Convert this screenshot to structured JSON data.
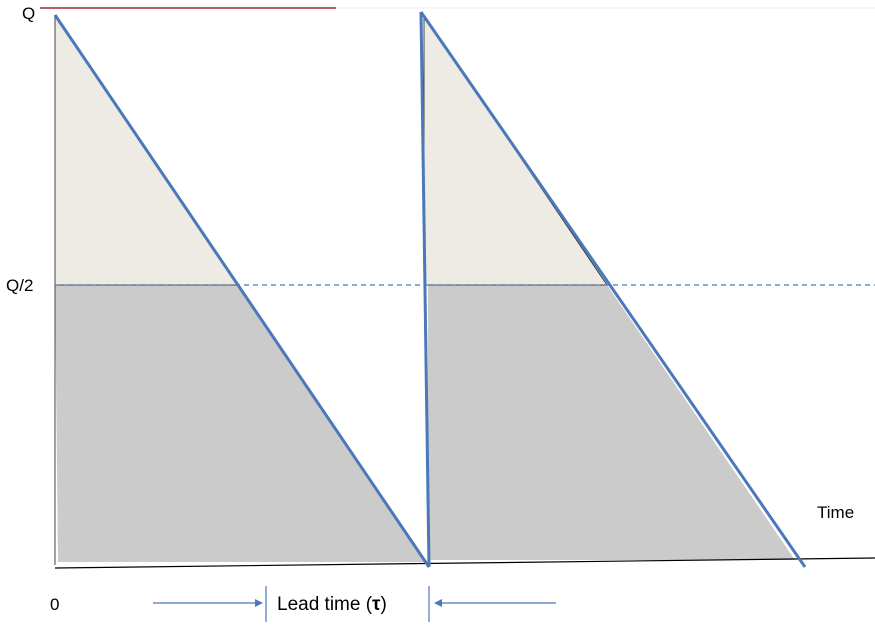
{
  "diagram": {
    "labels": {
      "q_top": "Q",
      "q_half": "Q/2",
      "origin": "0",
      "x_axis": "Time",
      "lead_time_prefix": "Lead time (",
      "lead_time_symbol": "τ",
      "lead_time_suffix": ")"
    },
    "colors": {
      "inventory_line": "#4a78b8",
      "half_level_line": "#4a78b8",
      "top_band": "#9b2f2f",
      "upper_triangle_fill": "#edebe4",
      "lower_region_fill": "#cbcbcb",
      "axis": "#000000"
    }
  }
}
